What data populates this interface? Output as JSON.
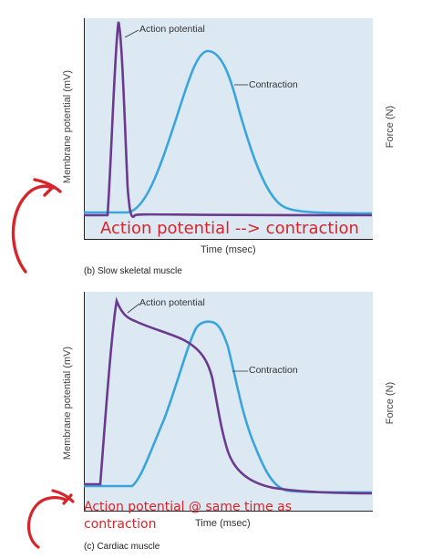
{
  "panels": [
    {
      "caption": "(b) Slow skeletal muscle",
      "y_axis_left": "Membrane potential (mV)",
      "y_axis_right": "Force (N)",
      "x_axis": "Time (msec)",
      "curve_labels": {
        "action_potential": "Action potential",
        "contraction": "Contraction"
      },
      "handwritten_note": "Action potential --> contraction"
    },
    {
      "caption": "(c) Cardiac muscle",
      "y_axis_left": "Membrane potential (mV)",
      "y_axis_right": "Force (N)",
      "x_axis": "Time (msec)",
      "curve_labels": {
        "action_potential": "Action potential",
        "contraction": "Contraction"
      },
      "handwritten_note_line1": "Action potential @ same time as",
      "handwritten_note_line2": "contraction"
    }
  ],
  "colors": {
    "action_potential": "#6b3a8f",
    "contraction": "#3aa4dc",
    "panel_bg": "#dce9f3",
    "handwriting": "#d6262b"
  }
}
